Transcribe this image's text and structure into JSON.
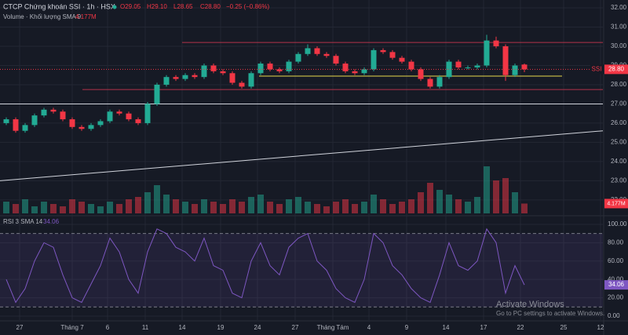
{
  "chart_data": {
    "type": "candlestick",
    "title": "CTCP Chứng khoán SSI · 1h · HSX",
    "ohlc_header": [
      "O29.05",
      "H29.10",
      "L28.65",
      "C28.80",
      "−0.25 (−0.86%)"
    ],
    "up_color": "#22ab94",
    "down_color": "#f23645",
    "open": [
      26.0,
      26.2,
      25.6,
      25.9,
      26.4,
      26.7,
      26.6,
      26.2,
      25.8,
      25.7,
      25.9,
      26.1,
      26.6,
      26.5,
      26.2,
      26.0,
      27.0,
      28.0,
      28.4,
      28.3,
      28.5,
      28.4,
      29.0,
      28.7,
      28.6,
      28.1,
      27.9,
      28.6,
      29.1,
      28.8,
      28.7,
      29.2,
      29.6,
      29.9,
      29.6,
      29.5,
      29.1,
      28.7,
      28.6,
      28.8,
      29.8,
      29.7,
      29.4,
      29.2,
      28.8,
      28.3,
      27.9,
      28.4,
      29.2,
      28.9,
      28.9,
      29.0,
      30.3,
      30.0,
      28.5,
      29.05
    ],
    "high": [
      26.3,
      26.3,
      26.0,
      26.5,
      26.8,
      26.8,
      26.7,
      26.3,
      25.9,
      26.0,
      26.2,
      26.7,
      26.7,
      26.6,
      26.3,
      27.1,
      28.1,
      28.5,
      28.5,
      28.6,
      28.6,
      29.1,
      29.1,
      28.8,
      28.7,
      28.2,
      28.7,
      29.2,
      29.2,
      28.9,
      29.3,
      29.7,
      30.1,
      30.0,
      29.7,
      29.6,
      29.2,
      28.8,
      28.9,
      29.9,
      29.9,
      29.8,
      29.5,
      29.3,
      28.9,
      28.4,
      28.5,
      29.3,
      29.3,
      29.0,
      29.1,
      30.6,
      30.5,
      30.1,
      29.1,
      29.1
    ],
    "low": [
      25.9,
      25.5,
      25.5,
      25.8,
      26.3,
      26.5,
      26.1,
      25.7,
      25.6,
      25.6,
      25.8,
      26.0,
      26.4,
      26.1,
      25.9,
      25.9,
      26.9,
      27.9,
      28.2,
      28.2,
      28.3,
      28.3,
      28.6,
      28.5,
      28.0,
      27.8,
      27.8,
      28.5,
      28.7,
      28.6,
      28.6,
      29.1,
      29.5,
      29.5,
      29.4,
      29.0,
      28.6,
      28.5,
      28.5,
      28.7,
      29.6,
      29.3,
      29.1,
      28.7,
      28.2,
      27.8,
      27.8,
      28.3,
      28.8,
      28.8,
      28.8,
      28.9,
      29.9,
      28.2,
      28.4,
      28.65
    ],
    "close": [
      26.2,
      25.6,
      25.9,
      26.4,
      26.7,
      26.6,
      26.2,
      25.8,
      25.7,
      25.9,
      26.1,
      26.6,
      26.5,
      26.2,
      26.0,
      27.0,
      28.0,
      28.4,
      28.3,
      28.5,
      28.4,
      29.0,
      28.7,
      28.6,
      28.1,
      27.9,
      28.6,
      29.1,
      28.8,
      28.7,
      29.2,
      29.6,
      29.9,
      29.6,
      29.5,
      29.1,
      28.7,
      28.6,
      28.8,
      29.8,
      29.7,
      29.4,
      29.2,
      28.8,
      28.3,
      27.9,
      28.4,
      29.2,
      28.9,
      28.9,
      29.0,
      30.3,
      30.0,
      28.5,
      29.0,
      28.8
    ],
    "ylim": [
      21.3,
      32.41
    ],
    "yticks": [
      {
        "value": 32,
        "label": "32.00"
      },
      {
        "value": 31,
        "label": "31.00"
      },
      {
        "value": 30,
        "label": "30.00"
      },
      {
        "value": 29,
        "label": "29.00"
      },
      {
        "value": 28,
        "label": "28.00"
      },
      {
        "value": 27,
        "label": "27.00"
      },
      {
        "value": 26,
        "label": "26.00"
      },
      {
        "value": 25,
        "label": "25.00"
      },
      {
        "value": 24,
        "label": "24.00"
      },
      {
        "value": 23,
        "label": "23.00"
      },
      {
        "value": 22,
        "label": "22.00"
      }
    ],
    "last_price_label": "28.80",
    "symbol": "SSI",
    "drawings": [
      {
        "price": 30.2,
        "color": "#b2334a"
      },
      {
        "price": 28.45,
        "color": "#e8d84a"
      },
      {
        "price": 27.75,
        "color": "#b2334a"
      },
      {
        "price": 27.0,
        "color": "#d1d4dc"
      }
    ],
    "trendline": {
      "start": 23.0,
      "end": 25.6,
      "color": "#d1d4dc"
    },
    "volume": {
      "title": "Volume · Khối lượng SMA 9",
      "value_label": "4.177M",
      "values": [
        5,
        4,
        6,
        3,
        5,
        4,
        3,
        6,
        5,
        4,
        3,
        5,
        4,
        6,
        7,
        9,
        12,
        8,
        6,
        5,
        4,
        6,
        5,
        4,
        6,
        5,
        7,
        8,
        5,
        4,
        6,
        7,
        5,
        4,
        3,
        5,
        6,
        4,
        5,
        8,
        6,
        4,
        5,
        6,
        9,
        13,
        10,
        8,
        6,
        5,
        7,
        20,
        14,
        15,
        9,
        4.177
      ],
      "ylim": [
        0,
        24
      ]
    },
    "rsi": {
      "title": "RSI 3 SMA 14",
      "value_label": "34.06",
      "color": "#7e57c2",
      "values": [
        40,
        15,
        30,
        60,
        80,
        75,
        45,
        20,
        15,
        35,
        55,
        85,
        70,
        40,
        25,
        70,
        95,
        90,
        75,
        70,
        60,
        85,
        55,
        50,
        25,
        20,
        60,
        80,
        55,
        45,
        75,
        85,
        90,
        60,
        50,
        30,
        20,
        15,
        40,
        90,
        80,
        55,
        45,
        30,
        20,
        15,
        45,
        80,
        55,
        50,
        60,
        95,
        80,
        25,
        55,
        34.06
      ],
      "ylim": [
        -4.3,
        106.8
      ],
      "bands": [
        90,
        10
      ],
      "yticks": [
        {
          "value": 100,
          "label": "100.00"
        },
        {
          "value": 80,
          "label": "80.00"
        },
        {
          "value": 60,
          "label": "60.00"
        },
        {
          "value": 40,
          "label": "40.00"
        },
        {
          "value": 20,
          "label": "20.00"
        },
        {
          "value": 0,
          "label": "0.00"
        }
      ]
    },
    "time_labels": [
      "27",
      "Tháng 7",
      "6",
      "11",
      "14",
      "19",
      "24",
      "27",
      "Tháng Tám",
      "4",
      "9",
      "14",
      "17",
      "22",
      "25",
      "12"
    ],
    "watermark": [
      "Activate Windows",
      "Go to PC settings to activate Windows."
    ]
  }
}
